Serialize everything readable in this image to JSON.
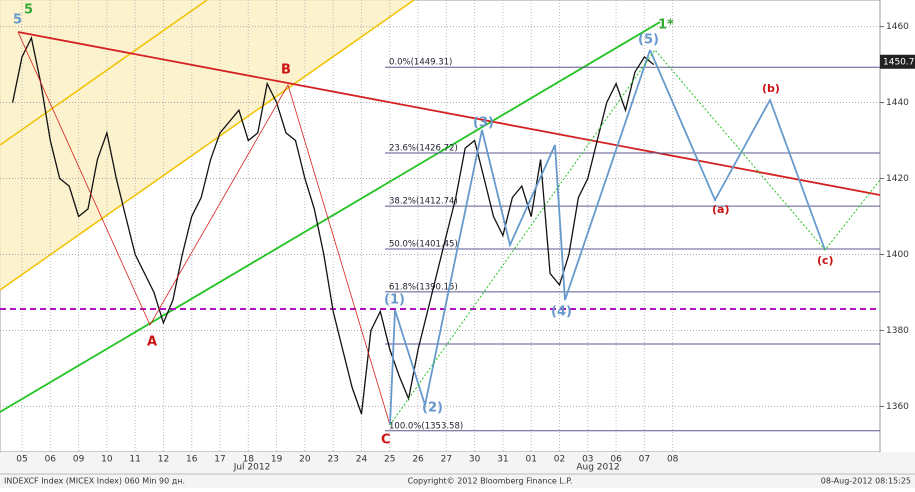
{
  "chart_data": {
    "type": "line",
    "categories": [
      null,
      "05",
      null,
      null,
      "06",
      null,
      null,
      "09",
      null,
      null,
      "10",
      null,
      null,
      "11",
      null,
      null,
      "12",
      null,
      null,
      "16",
      null,
      null,
      "17",
      null,
      null,
      "18",
      null,
      null,
      "19",
      null,
      null,
      "20",
      null,
      null,
      "23",
      null,
      null,
      "24",
      null,
      null,
      "25",
      null,
      null,
      "26",
      null,
      null,
      "27",
      null,
      null,
      "30",
      null,
      null,
      "31",
      null,
      null,
      "01",
      null,
      null,
      "02",
      null,
      null,
      "03",
      null,
      null,
      "06",
      null,
      null,
      "07",
      null,
      null,
      "08",
      null
    ],
    "series": [
      {
        "name": "INDEXCF Index",
        "color": "#111111",
        "values": [
          1440,
          1452,
          1457,
          1445,
          1430,
          1420,
          1418,
          1410,
          1412,
          1425,
          1432,
          1420,
          1410,
          1400,
          1395,
          1390,
          1382,
          1388,
          1400,
          1410,
          1415,
          1425,
          1432,
          1435,
          1438,
          1430,
          1432,
          1445,
          1440,
          1432,
          1430,
          1420,
          1412,
          1400,
          1385,
          1375,
          1365,
          1358,
          1380,
          1385,
          1375,
          1368,
          1362,
          1375,
          1385,
          1395,
          1405,
          1415,
          1428,
          1430,
          1420,
          1410,
          1405,
          1415,
          1418,
          1410,
          1425,
          1395,
          1392,
          1400,
          1415,
          1420,
          1430,
          1440,
          1445,
          1438,
          1448,
          1452,
          1450,
          null,
          null,
          null
        ]
      }
    ],
    "ylim": [
      1348,
      1467
    ],
    "yticks": [
      1360,
      1380,
      1400,
      1420,
      1440,
      1460
    ],
    "grid": true,
    "months": [
      "Jul 2012",
      "Aug 2012"
    ],
    "last_price": 1450.74,
    "fib_levels": [
      {
        "label": "0.0%(1449.31)",
        "value": 1449.31
      },
      {
        "label": "23.6%(1426.72)",
        "value": 1426.72
      },
      {
        "label": "38.2%(1412.74)",
        "value": 1412.74
      },
      {
        "label": "50.0%(1401.45)",
        "value": 1401.45
      },
      {
        "label": "61.8%(1390.15)",
        "value": 1390.15
      },
      {
        "label": "100.0%(1353.58)",
        "value": 1353.58
      }
    ],
    "annotations": [
      "5",
      "5",
      "A",
      "B",
      "C",
      "(1)",
      "(2)",
      "(3)",
      "(4)",
      "(5)",
      "1*",
      "(a)",
      "(b)",
      "(c)"
    ],
    "footer": {
      "left": "INDEXCF Index (MICEX Index) 060 Min 90 дн.",
      "center": "Copyright© 2012 Bloomberg Finance L.P.",
      "right": "08-Aug-2012 08:15:25"
    }
  }
}
